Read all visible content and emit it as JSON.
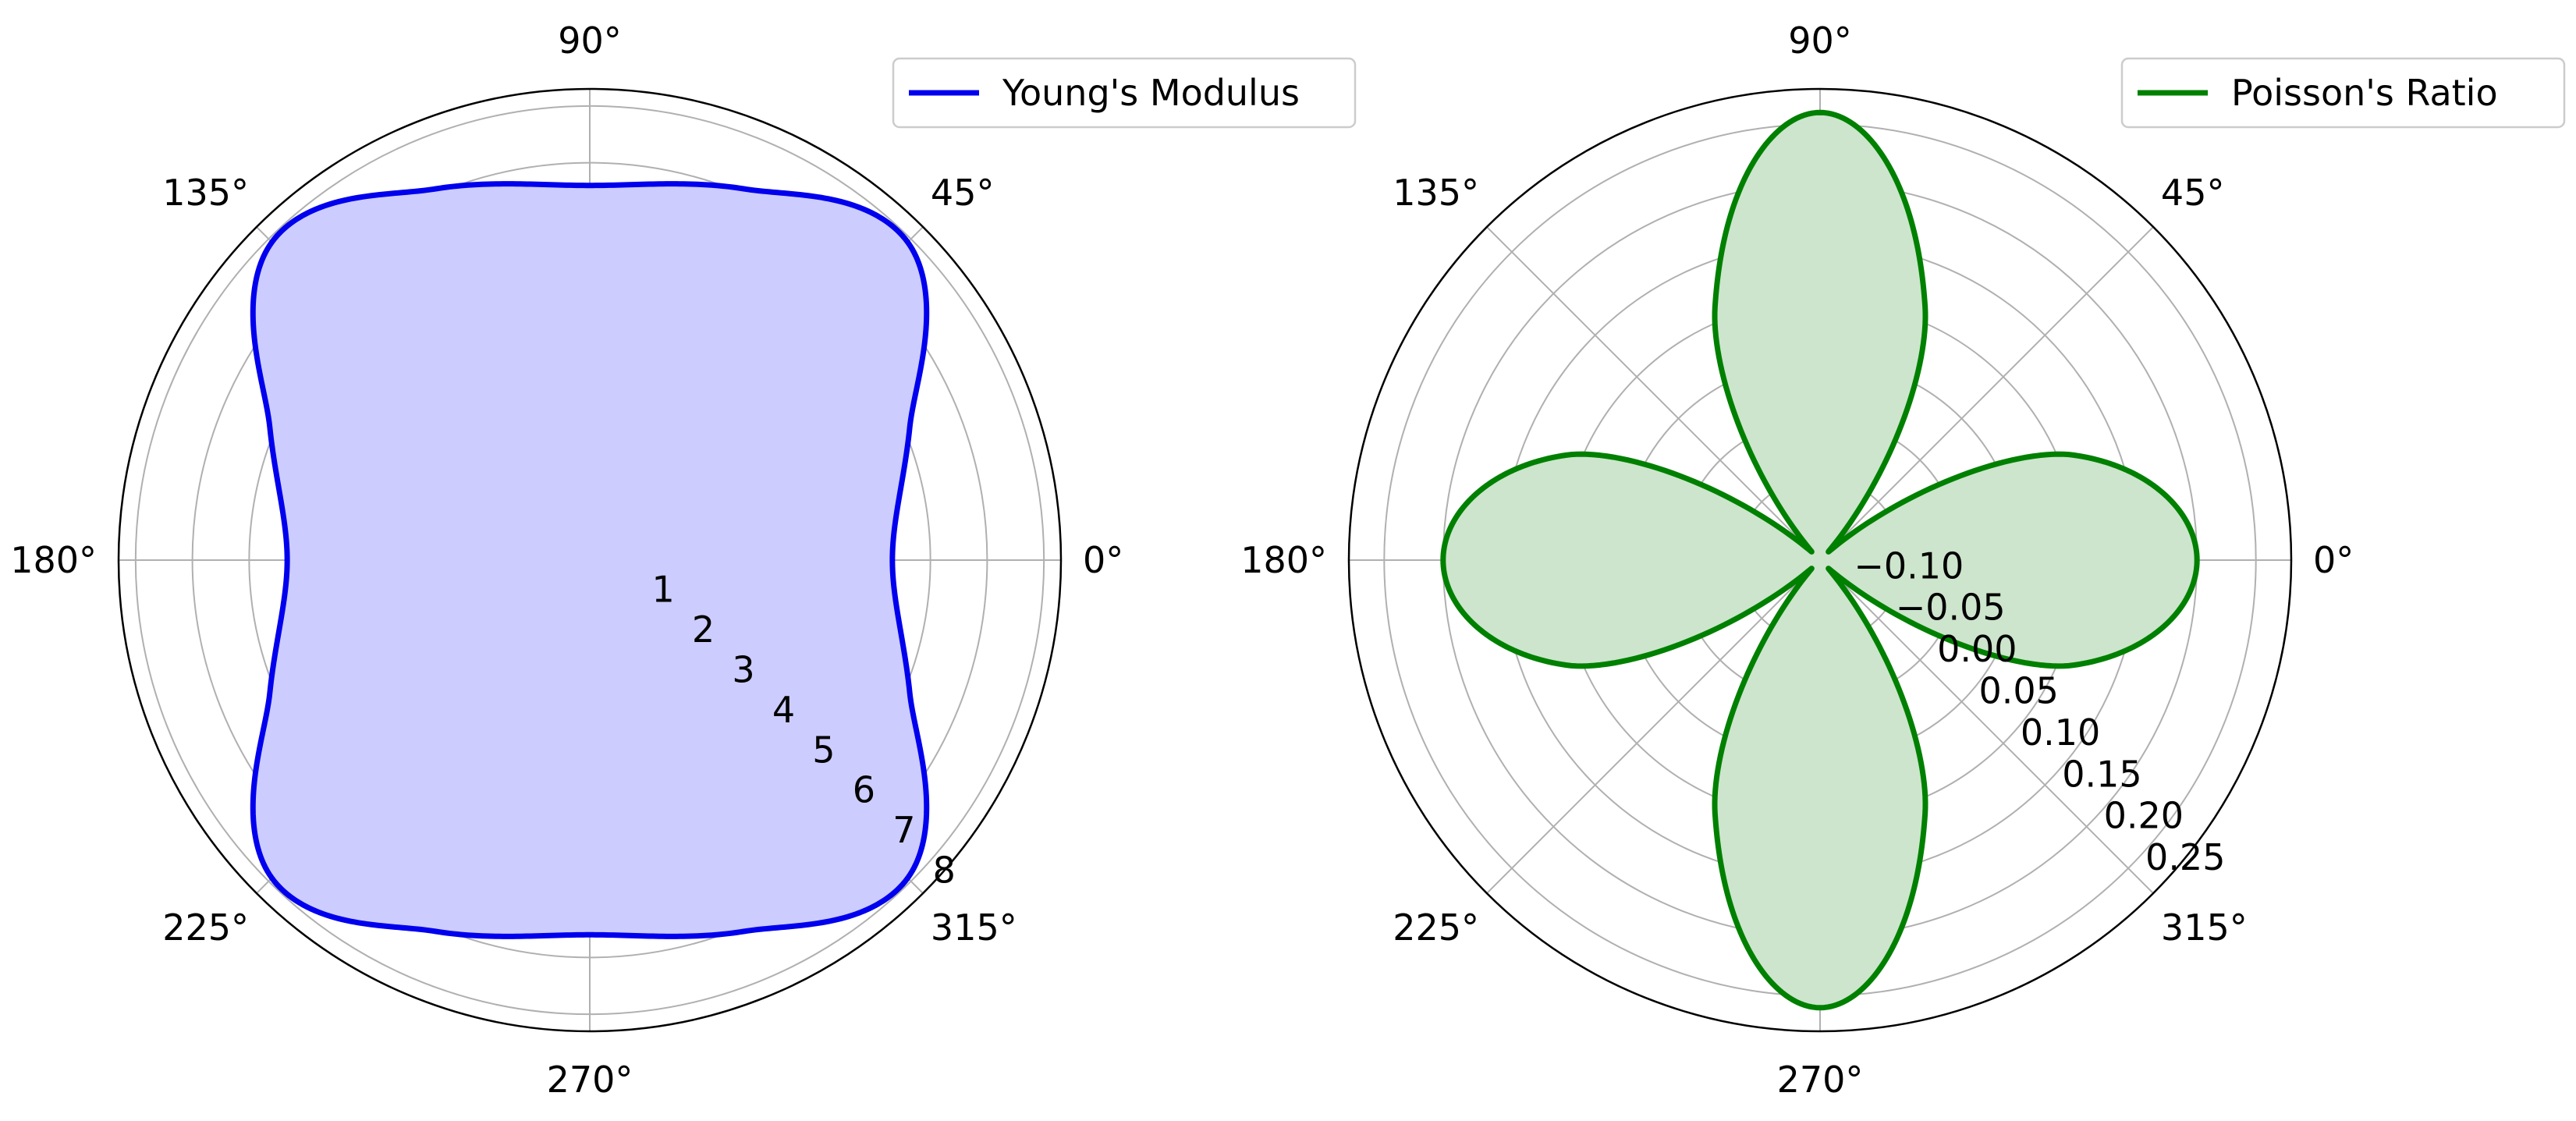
{
  "chart_data": [
    {
      "type": "polar-area",
      "angle_tick_labels": [
        "0°",
        "45°",
        "90°",
        "135°",
        "180°",
        "225°",
        "270°",
        "315°"
      ],
      "angle_ticks_deg": [
        0,
        45,
        90,
        135,
        180,
        225,
        270,
        315
      ],
      "radial_tick_labels": [
        "1",
        "2",
        "3",
        "4",
        "5",
        "6",
        "7",
        "8"
      ],
      "radial_ticks": [
        1,
        2,
        3,
        4,
        5,
        6,
        7,
        8
      ],
      "rlim": [
        0,
        8.3
      ],
      "grid": true,
      "legend_position": "top-right",
      "series": [
        {
          "name": "Young's Modulus",
          "color": "#0000ee",
          "fill_color": "#ccccff",
          "angles_deg": [
            0,
            22.5,
            45,
            67.5,
            90,
            112.5,
            135,
            157.5,
            180,
            202.5,
            225,
            247.5,
            270,
            292.5,
            315,
            337.5
          ],
          "values": [
            5.33,
            6.1,
            7.92,
            7.08,
            6.6,
            7.08,
            7.92,
            6.1,
            5.33,
            6.1,
            7.92,
            7.08,
            6.6,
            7.08,
            7.92,
            6.1
          ]
        }
      ]
    },
    {
      "type": "polar-area",
      "angle_tick_labels": [
        "0°",
        "45°",
        "90°",
        "135°",
        "180°",
        "225°",
        "270°",
        "315°"
      ],
      "angle_ticks_deg": [
        0,
        45,
        90,
        135,
        180,
        225,
        270,
        315
      ],
      "radial_tick_labels": [
        "−0.10",
        "−0.05",
        "0.00",
        "0.05",
        "0.10",
        "0.15",
        "0.20",
        "0.25"
      ],
      "radial_ticks": [
        -0.1,
        -0.05,
        0.0,
        0.05,
        0.1,
        0.15,
        0.2,
        0.25
      ],
      "rlim": [
        -0.12,
        0.28
      ],
      "grid": true,
      "legend_position": "top-right",
      "series": [
        {
          "name": "Poisson's Ratio",
          "color": "#008000",
          "fill_color": "#cce5cc",
          "angles_deg": [
            0,
            22.5,
            45,
            67.5,
            90,
            112.5,
            135,
            157.5,
            180,
            202.5,
            225,
            247.5,
            270,
            292.5,
            315,
            337.5
          ],
          "values": [
            0.2,
            0.113,
            -0.11,
            0.113,
            0.26,
            0.113,
            -0.11,
            0.113,
            0.2,
            0.113,
            -0.11,
            0.113,
            0.26,
            0.113,
            -0.11,
            0.113
          ]
        }
      ]
    }
  ]
}
